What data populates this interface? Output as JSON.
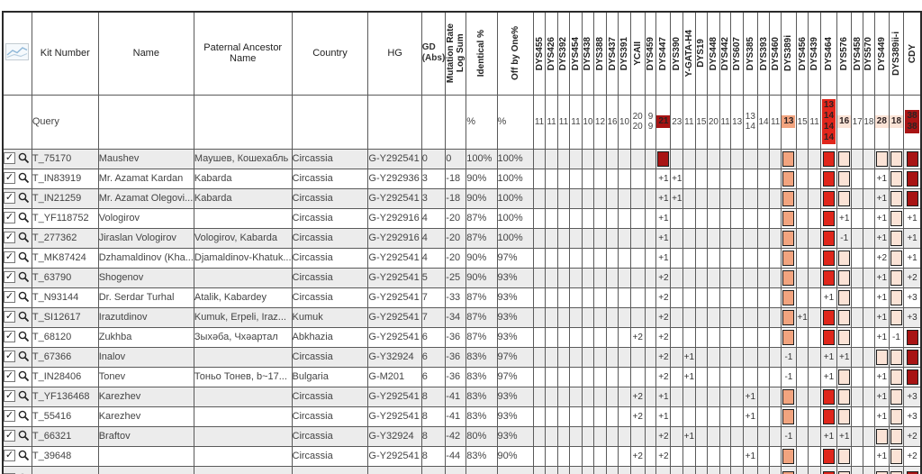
{
  "colors": {
    "darkred": "#a81414",
    "red": "#e0261b",
    "salmon": "#f2a47f",
    "lightpink": "#fbe3d6",
    "stripe": "#ececec",
    "grid": "#5a5a5a",
    "outer": "#2a2a2a"
  },
  "corner_icon": "chart-thumbnail-icon",
  "row_icons": {
    "checkbox": "checked",
    "magnifier": "zoom-row-icon"
  },
  "fixed_columns": [
    {
      "key": "select",
      "label": "",
      "width": 33
    },
    {
      "key": "kit",
      "label": "Kit Number",
      "width": 77
    },
    {
      "key": "name",
      "label": "Name",
      "width": 98
    },
    {
      "key": "paternal",
      "label": "Paternal Ancestor Name",
      "width": 100
    },
    {
      "key": "country",
      "label": "Country",
      "width": 98
    },
    {
      "key": "hg",
      "label": "HG",
      "width": 60
    },
    {
      "key": "gd",
      "label": "GD\n(Abs)",
      "width": 24
    },
    {
      "key": "logsum",
      "label": "Mutation Rate\nLog Sum",
      "width": 22,
      "vertical": true
    },
    {
      "key": "identical",
      "label": "Identical %",
      "width": 36,
      "vertical": true
    },
    {
      "key": "offbyone",
      "label": "Off by One%",
      "width": 44,
      "vertical": true
    }
  ],
  "markers": [
    {
      "name": "DYS455",
      "width": 14,
      "query": [
        "11"
      ],
      "highlight": "none"
    },
    {
      "name": "DYS426",
      "width": 14,
      "query": [
        "11"
      ],
      "highlight": "none"
    },
    {
      "name": "DYS392",
      "width": 14,
      "query": [
        "11"
      ],
      "highlight": "none"
    },
    {
      "name": "DYS454",
      "width": 14,
      "query": [
        "11"
      ],
      "highlight": "none"
    },
    {
      "name": "DYS438",
      "width": 14,
      "query": [
        "10"
      ],
      "highlight": "none"
    },
    {
      "name": "DYS388",
      "width": 14,
      "query": [
        "12"
      ],
      "highlight": "none"
    },
    {
      "name": "DYS437",
      "width": 14,
      "query": [
        "16"
      ],
      "highlight": "none"
    },
    {
      "name": "DYS391",
      "width": 14,
      "query": [
        "10"
      ],
      "highlight": "none"
    },
    {
      "name": "YCAII",
      "width": 17,
      "query": [
        "20",
        "20"
      ],
      "highlight": "none"
    },
    {
      "name": "DYS459",
      "width": 13,
      "query": [
        "9",
        "9"
      ],
      "highlight": "none"
    },
    {
      "name": "DYS447",
      "width": 16,
      "query": [
        "21"
      ],
      "highlight": "darkred"
    },
    {
      "name": "DYS390",
      "width": 14,
      "query": [
        "23"
      ],
      "highlight": "none"
    },
    {
      "name": "Y-GATA-H4",
      "width": 14,
      "query": [
        "11"
      ],
      "highlight": "none"
    },
    {
      "name": "DYS19",
      "width": 14,
      "query": [
        "15"
      ],
      "highlight": "none"
    },
    {
      "name": "DYS448",
      "width": 14,
      "query": [
        "20"
      ],
      "highlight": "none"
    },
    {
      "name": "DYS442",
      "width": 13,
      "query": [
        "11"
      ],
      "highlight": "none"
    },
    {
      "name": "DYS607",
      "width": 14,
      "query": [
        "13"
      ],
      "highlight": "none"
    },
    {
      "name": "DYS385",
      "width": 17,
      "query": [
        "13",
        "14"
      ],
      "highlight": "none"
    },
    {
      "name": "DYS393",
      "width": 14,
      "query": [
        "14"
      ],
      "highlight": "none"
    },
    {
      "name": "DYS460",
      "width": 13,
      "query": [
        "11"
      ],
      "highlight": "none"
    },
    {
      "name": "DYS389i",
      "width": 17,
      "query": [
        "13"
      ],
      "highlight": "salmon"
    },
    {
      "name": "DYS456",
      "width": 14,
      "query": [
        "15"
      ],
      "highlight": "none"
    },
    {
      "name": "DYS439",
      "width": 14,
      "query": [
        "11"
      ],
      "highlight": "none"
    },
    {
      "name": "DYS464",
      "width": 19,
      "query": [
        "13",
        "14",
        "14",
        "14"
      ],
      "highlight": "red"
    },
    {
      "name": "DYS576",
      "width": 15,
      "query": [
        "16"
      ],
      "highlight": "lightpink"
    },
    {
      "name": "DYS458",
      "width": 13,
      "query": [
        "17"
      ],
      "highlight": "none"
    },
    {
      "name": "DYS570",
      "width": 13,
      "query": [
        "18"
      ],
      "highlight": "none"
    },
    {
      "name": "DYS449",
      "width": 16,
      "query": [
        "28"
      ],
      "highlight": "lightpink"
    },
    {
      "name": "DYS389ii-i",
      "width": 14,
      "query": [
        "18"
      ],
      "highlight": "lightpink"
    },
    {
      "name": "CDY",
      "width": 20,
      "query": [
        "38",
        "38"
      ],
      "highlight": "darkred"
    }
  ],
  "query_row": {
    "kit": "Query",
    "identical": "%",
    "offbyone": "%"
  },
  "rows": [
    {
      "kit": "T_75170",
      "name": "Maushev",
      "paternal": "Маушев, Кошехабль",
      "country": "Circassia",
      "hg": "G-Y292541",
      "gd": "0",
      "logsum": "0",
      "identical": "100%",
      "offbyone": "100%",
      "checked": true,
      "markers": {
        "DYS447": "box",
        "DYS389i": "box",
        "DYS464": "box",
        "DYS576": "box",
        "DYS449": "box",
        "DYS389ii-i": "box",
        "CDY": "box"
      }
    },
    {
      "kit": "T_IN83919",
      "name": "Mr. Azamat Kardan",
      "paternal": "Kabarda",
      "country": "Circassia",
      "hg": "G-Y292936",
      "gd": "3",
      "logsum": "-18",
      "identical": "90%",
      "offbyone": "100%",
      "checked": true,
      "markers": {
        "DYS447": "+1",
        "DYS390": "+1",
        "DYS389i": "box",
        "DYS464": "box",
        "DYS576": "box",
        "DYS449": "+1",
        "DYS389ii-i": "box",
        "CDY": "box"
      }
    },
    {
      "kit": "T_IN21259",
      "name": "Mr. Azamat Olegovi...",
      "paternal": "Kabarda",
      "country": "Circassia",
      "hg": "G-Y292541",
      "gd": "3",
      "logsum": "-18",
      "identical": "90%",
      "offbyone": "100%",
      "checked": true,
      "markers": {
        "DYS447": "+1",
        "DYS390": "+1",
        "DYS389i": "box",
        "DYS464": "box",
        "DYS576": "box",
        "DYS449": "+1",
        "DYS389ii-i": "box",
        "CDY": "box"
      }
    },
    {
      "kit": "T_YF118752",
      "name": "Vologirov",
      "paternal": "",
      "country": "Circassia",
      "hg": "G-Y292916",
      "gd": "4",
      "logsum": "-20",
      "identical": "87%",
      "offbyone": "100%",
      "checked": true,
      "markers": {
        "DYS447": "+1",
        "DYS389i": "box",
        "DYS464": "box",
        "DYS576": "+1",
        "DYS449": "+1",
        "DYS389ii-i": "box",
        "CDY": "+1"
      }
    },
    {
      "kit": "T_277362",
      "name": "Jiraslan Vologirov",
      "paternal": "Vologirov, Kabarda",
      "country": "Circassia",
      "hg": "G-Y292916",
      "gd": "4",
      "logsum": "-20",
      "identical": "87%",
      "offbyone": "100%",
      "checked": true,
      "markers": {
        "DYS447": "+1",
        "DYS389i": "box",
        "DYS464": "box",
        "DYS576": "-1",
        "DYS449": "+1",
        "DYS389ii-i": "box",
        "CDY": "+1"
      }
    },
    {
      "kit": "T_MK87424",
      "name": "Dzhamaldinov (Kha...",
      "paternal": "Djamaldinov-Khatuk...",
      "country": "Circassia",
      "hg": "G-Y292541",
      "gd": "4",
      "logsum": "-20",
      "identical": "90%",
      "offbyone": "97%",
      "checked": true,
      "markers": {
        "DYS447": "+1",
        "DYS389i": "box",
        "DYS464": "box",
        "DYS576": "box",
        "DYS449": "+2",
        "DYS389ii-i": "box",
        "CDY": "+1"
      }
    },
    {
      "kit": "T_63790",
      "name": "Shogenov",
      "paternal": "",
      "country": "Circassia",
      "hg": "G-Y292541",
      "gd": "5",
      "logsum": "-25",
      "identical": "90%",
      "offbyone": "93%",
      "checked": true,
      "markers": {
        "DYS447": "+2",
        "DYS389i": "box",
        "DYS464": "box",
        "DYS576": "box",
        "DYS449": "+1",
        "DYS389ii-i": "box",
        "CDY": "+2"
      }
    },
    {
      "kit": "T_N93144",
      "name": "Dr. Serdar Turhal",
      "paternal": "Atalik, Kabardey",
      "country": "Circassia",
      "hg": "G-Y292541",
      "gd": "7",
      "logsum": "-33",
      "identical": "87%",
      "offbyone": "93%",
      "checked": true,
      "markers": {
        "DYS447": "+2",
        "DYS389i": "box",
        "DYS464": "+1",
        "DYS576": "box",
        "DYS449": "+1",
        "DYS389ii-i": "box",
        "CDY": "+3"
      }
    },
    {
      "kit": "T_SI12617",
      "name": "Irazutdinov",
      "paternal": "Kumuk, Erpeli, Iraz...",
      "country": "Kumuk",
      "hg": "G-Y292541",
      "gd": "7",
      "logsum": "-34",
      "identical": "87%",
      "offbyone": "93%",
      "checked": true,
      "markers": {
        "DYS447": "+2",
        "DYS456": "+1",
        "DYS389i": "box",
        "DYS464": "box",
        "DYS576": "box",
        "DYS449": "+1",
        "DYS389ii-i": "box",
        "CDY": "+3"
      }
    },
    {
      "kit": "T_68120",
      "name": "Zukhba",
      "paternal": "Зыхәба, Чхәартал",
      "country": "Abkhazia",
      "hg": "G-Y292541",
      "gd": "6",
      "logsum": "-36",
      "identical": "87%",
      "offbyone": "93%",
      "checked": true,
      "markers": {
        "YCAII": "+2",
        "DYS447": "+2",
        "DYS389i": "box",
        "DYS464": "box",
        "DYS576": "box",
        "DYS449": "+1",
        "DYS389ii-i": "-1",
        "CDY": "box"
      }
    },
    {
      "kit": "T_67366",
      "name": "Inalov",
      "paternal": "",
      "country": "Circassia",
      "hg": "G-Y32924",
      "gd": "6",
      "logsum": "-36",
      "identical": "83%",
      "offbyone": "97%",
      "checked": true,
      "markers": {
        "DYS447": "+2",
        "Y-GATA-H4": "+1",
        "DYS389i": "-1",
        "DYS464": "+1",
        "DYS576": "+1",
        "DYS449": "box",
        "DYS389ii-i": "box",
        "CDY": "box"
      }
    },
    {
      "kit": "T_IN28406",
      "name": "Tonev",
      "paternal": "Тоньо Тонев, b~17...",
      "country": "Bulgaria",
      "hg": "G-M201",
      "gd": "6",
      "logsum": "-36",
      "identical": "83%",
      "offbyone": "97%",
      "checked": true,
      "markers": {
        "DYS447": "+2",
        "Y-GATA-H4": "+1",
        "DYS389i": "-1",
        "DYS464": "+1",
        "DYS576": "box",
        "DYS449": "+1",
        "DYS389ii-i": "box",
        "CDY": "box"
      }
    },
    {
      "kit": "T_YF136468",
      "name": "Karezhev",
      "paternal": "",
      "country": "Circassia",
      "hg": "G-Y292541",
      "gd": "8",
      "logsum": "-41",
      "identical": "83%",
      "offbyone": "93%",
      "checked": true,
      "markers": {
        "YCAII": "+2",
        "DYS447": "+1",
        "DYS385": "+1",
        "DYS389i": "box",
        "DYS464": "box",
        "DYS576": "box",
        "DYS449": "+1",
        "DYS389ii-i": "box",
        "CDY": "+3"
      }
    },
    {
      "kit": "T_55416",
      "name": "Karezhev",
      "paternal": "",
      "country": "Circassia",
      "hg": "G-Y292541",
      "gd": "8",
      "logsum": "-41",
      "identical": "83%",
      "offbyone": "93%",
      "checked": true,
      "markers": {
        "YCAII": "+2",
        "DYS447": "+1",
        "DYS385": "+1",
        "DYS389i": "box",
        "DYS464": "box",
        "DYS576": "box",
        "DYS449": "+1",
        "DYS389ii-i": "box",
        "CDY": "+3"
      }
    },
    {
      "kit": "T_66321",
      "name": "Braftov",
      "paternal": "",
      "country": "Circassia",
      "hg": "G-Y32924",
      "gd": "8",
      "logsum": "-42",
      "identical": "80%",
      "offbyone": "93%",
      "checked": true,
      "markers": {
        "DYS447": "+2",
        "Y-GATA-H4": "+1",
        "DYS389i": "-1",
        "DYS464": "+1",
        "DYS576": "+1",
        "DYS449": "box",
        "DYS389ii-i": "box",
        "CDY": "+2"
      }
    },
    {
      "kit": "T_39648",
      "name": "",
      "paternal": "",
      "country": "Circassia",
      "hg": "G-Y292541",
      "gd": "8",
      "logsum": "-44",
      "identical": "83%",
      "offbyone": "90%",
      "checked": true,
      "markers": {
        "YCAII": "+2",
        "DYS447": "+2",
        "DYS385": "+1",
        "DYS389i": "box",
        "DYS464": "box",
        "DYS576": "box",
        "DYS449": "+1",
        "DYS389ii-i": "box",
        "CDY": "+2"
      }
    }
  ],
  "partial_row": {
    "kit": "",
    "name": "",
    "paternal": "",
    "country": "",
    "hg": "",
    "gd": "",
    "logsum": "",
    "identical": "",
    "offbyone": "",
    "checked": true,
    "markers": {
      "DYS389i": "box",
      "DYS464": "box",
      "DYS576": "box",
      "DYS449": "box",
      "DYS389ii-i": "box",
      "CDY": "box"
    }
  }
}
